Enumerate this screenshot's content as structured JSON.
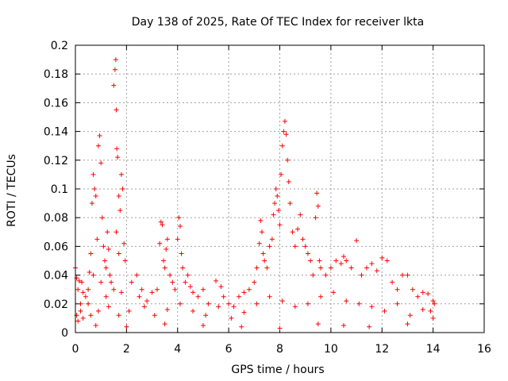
{
  "chart_data": {
    "type": "scatter",
    "title": "Day 138 of 2025, Rate Of TEC Index for receiver lkta",
    "xlabel": "GPS time / hours",
    "ylabel": "ROTI / TECUs",
    "xlim": [
      0,
      16
    ],
    "ylim": [
      0,
      0.2
    ],
    "xticks": [
      0,
      2,
      4,
      6,
      8,
      10,
      12,
      14,
      16
    ],
    "yticks": [
      0,
      0.02,
      0.04,
      0.06,
      0.08,
      0.1,
      0.12,
      0.14,
      0.16,
      0.18,
      0.2
    ],
    "xtick_labels": [
      "0",
      "2",
      "4",
      "6",
      "8",
      "10",
      "12",
      "14",
      "16"
    ],
    "ytick_labels": [
      "0",
      "0.02",
      "0.04",
      "0.06",
      "0.08",
      "0.1",
      "0.12",
      "0.14",
      "0.16",
      "0.18",
      "0.2"
    ],
    "grid": true,
    "marker": "plus",
    "marker_color": "#ff0000",
    "series": [
      {
        "name": "ROTI",
        "points": [
          [
            0.0,
            0.045
          ],
          [
            0.05,
            0.038
          ],
          [
            0.1,
            0.03
          ],
          [
            0.15,
            0.036
          ],
          [
            0.2,
            0.02
          ],
          [
            0.25,
            0.035
          ],
          [
            0.3,
            0.028
          ],
          [
            0.05,
            0.012
          ],
          [
            0.1,
            0.008
          ],
          [
            0.2,
            0.015
          ],
          [
            0.4,
            0.025
          ],
          [
            0.5,
            0.03
          ],
          [
            0.55,
            0.042
          ],
          [
            0.6,
            0.055
          ],
          [
            0.65,
            0.09
          ],
          [
            0.7,
            0.11
          ],
          [
            0.75,
            0.1
          ],
          [
            0.8,
            0.095
          ],
          [
            0.85,
            0.065
          ],
          [
            0.9,
            0.13
          ],
          [
            0.95,
            0.137
          ],
          [
            1.0,
            0.118
          ],
          [
            1.05,
            0.08
          ],
          [
            1.1,
            0.06
          ],
          [
            1.15,
            0.05
          ],
          [
            1.2,
            0.045
          ],
          [
            1.25,
            0.07
          ],
          [
            1.3,
            0.058
          ],
          [
            1.35,
            0.04
          ],
          [
            1.4,
            0.035
          ],
          [
            1.5,
            0.172
          ],
          [
            1.55,
            0.183
          ],
          [
            1.58,
            0.19
          ],
          [
            1.6,
            0.155
          ],
          [
            1.62,
            0.128
          ],
          [
            1.65,
            0.122
          ],
          [
            1.7,
            0.095
          ],
          [
            1.75,
            0.085
          ],
          [
            1.8,
            0.11
          ],
          [
            1.85,
            0.1
          ],
          [
            1.9,
            0.062
          ],
          [
            1.95,
            0.05
          ],
          [
            1.6,
            0.07
          ],
          [
            1.7,
            0.055
          ],
          [
            1.0,
            0.035
          ],
          [
            0.7,
            0.04
          ],
          [
            0.5,
            0.02
          ],
          [
            1.2,
            0.025
          ],
          [
            1.5,
            0.03
          ],
          [
            1.8,
            0.028
          ],
          [
            2.2,
            0.035
          ],
          [
            2.4,
            0.04
          ],
          [
            2.5,
            0.025
          ],
          [
            2.6,
            0.03
          ],
          [
            2.8,
            0.022
          ],
          [
            3.0,
            0.028
          ],
          [
            3.2,
            0.03
          ],
          [
            3.3,
            0.062
          ],
          [
            3.35,
            0.077
          ],
          [
            3.4,
            0.075
          ],
          [
            3.45,
            0.05
          ],
          [
            3.5,
            0.045
          ],
          [
            3.55,
            0.058
          ],
          [
            3.6,
            0.065
          ],
          [
            3.7,
            0.04
          ],
          [
            3.8,
            0.035
          ],
          [
            3.9,
            0.03
          ],
          [
            4.0,
            0.065
          ],
          [
            4.05,
            0.08
          ],
          [
            4.1,
            0.074
          ],
          [
            4.15,
            0.055
          ],
          [
            4.2,
            0.045
          ],
          [
            4.3,
            0.035
          ],
          [
            4.4,
            0.04
          ],
          [
            4.5,
            0.032
          ],
          [
            4.6,
            0.028
          ],
          [
            4.8,
            0.025
          ],
          [
            5.0,
            0.03
          ],
          [
            5.2,
            0.02
          ],
          [
            5.5,
            0.036
          ],
          [
            5.7,
            0.032
          ],
          [
            5.8,
            0.025
          ],
          [
            6.0,
            0.02
          ],
          [
            6.2,
            0.018
          ],
          [
            6.4,
            0.025
          ],
          [
            6.6,
            0.028
          ],
          [
            6.8,
            0.03
          ],
          [
            7.0,
            0.035
          ],
          [
            7.1,
            0.045
          ],
          [
            7.2,
            0.062
          ],
          [
            7.25,
            0.078
          ],
          [
            7.3,
            0.07
          ],
          [
            7.35,
            0.055
          ],
          [
            7.4,
            0.05
          ],
          [
            7.5,
            0.045
          ],
          [
            7.6,
            0.06
          ],
          [
            7.7,
            0.065
          ],
          [
            7.75,
            0.082
          ],
          [
            7.8,
            0.09
          ],
          [
            7.85,
            0.1
          ],
          [
            7.9,
            0.095
          ],
          [
            7.95,
            0.085
          ],
          [
            8.0,
            0.075
          ],
          [
            8.05,
            0.11
          ],
          [
            8.1,
            0.13
          ],
          [
            8.15,
            0.14
          ],
          [
            8.2,
            0.147
          ],
          [
            8.25,
            0.138
          ],
          [
            8.3,
            0.12
          ],
          [
            8.35,
            0.105
          ],
          [
            8.4,
            0.09
          ],
          [
            8.5,
            0.07
          ],
          [
            8.6,
            0.06
          ],
          [
            8.7,
            0.072
          ],
          [
            8.8,
            0.082
          ],
          [
            8.9,
            0.065
          ],
          [
            9.0,
            0.06
          ],
          [
            9.1,
            0.055
          ],
          [
            9.2,
            0.05
          ],
          [
            9.3,
            0.04
          ],
          [
            9.4,
            0.08
          ],
          [
            9.45,
            0.097
          ],
          [
            9.5,
            0.088
          ],
          [
            9.55,
            0.05
          ],
          [
            9.6,
            0.045
          ],
          [
            9.8,
            0.04
          ],
          [
            10.0,
            0.045
          ],
          [
            10.2,
            0.05
          ],
          [
            10.4,
            0.048
          ],
          [
            10.5,
            0.053
          ],
          [
            10.6,
            0.05
          ],
          [
            10.8,
            0.045
          ],
          [
            11.0,
            0.064
          ],
          [
            11.2,
            0.04
          ],
          [
            11.4,
            0.045
          ],
          [
            11.6,
            0.048
          ],
          [
            11.8,
            0.043
          ],
          [
            12.0,
            0.052
          ],
          [
            12.2,
            0.05
          ],
          [
            12.4,
            0.035
          ],
          [
            12.6,
            0.03
          ],
          [
            12.8,
            0.04
          ],
          [
            13.0,
            0.04
          ],
          [
            13.2,
            0.03
          ],
          [
            13.4,
            0.025
          ],
          [
            13.6,
            0.028
          ],
          [
            13.8,
            0.027
          ],
          [
            14.0,
            0.022
          ],
          [
            14.05,
            0.02
          ],
          [
            13.9,
            0.015
          ],
          [
            0.3,
            0.01
          ],
          [
            0.6,
            0.012
          ],
          [
            0.9,
            0.015
          ],
          [
            1.3,
            0.018
          ],
          [
            1.7,
            0.012
          ],
          [
            2.1,
            0.015
          ],
          [
            2.7,
            0.018
          ],
          [
            3.1,
            0.012
          ],
          [
            3.6,
            0.016
          ],
          [
            4.1,
            0.02
          ],
          [
            4.6,
            0.015
          ],
          [
            5.1,
            0.012
          ],
          [
            5.6,
            0.018
          ],
          [
            6.1,
            0.01
          ],
          [
            6.6,
            0.014
          ],
          [
            7.1,
            0.02
          ],
          [
            7.6,
            0.025
          ],
          [
            8.1,
            0.022
          ],
          [
            8.6,
            0.018
          ],
          [
            9.1,
            0.02
          ],
          [
            9.6,
            0.025
          ],
          [
            10.1,
            0.028
          ],
          [
            10.6,
            0.022
          ],
          [
            11.1,
            0.02
          ],
          [
            11.6,
            0.018
          ],
          [
            12.1,
            0.015
          ],
          [
            12.6,
            0.02
          ],
          [
            13.1,
            0.012
          ],
          [
            13.6,
            0.016
          ],
          [
            14.0,
            0.01
          ],
          [
            0.8,
            0.005
          ],
          [
            2.0,
            0.004
          ],
          [
            3.5,
            0.006
          ],
          [
            5.0,
            0.005
          ],
          [
            6.5,
            0.004
          ],
          [
            8.0,
            0.003
          ],
          [
            9.5,
            0.006
          ],
          [
            10.5,
            0.005
          ],
          [
            11.5,
            0.004
          ],
          [
            13.0,
            0.006
          ]
        ]
      }
    ]
  }
}
